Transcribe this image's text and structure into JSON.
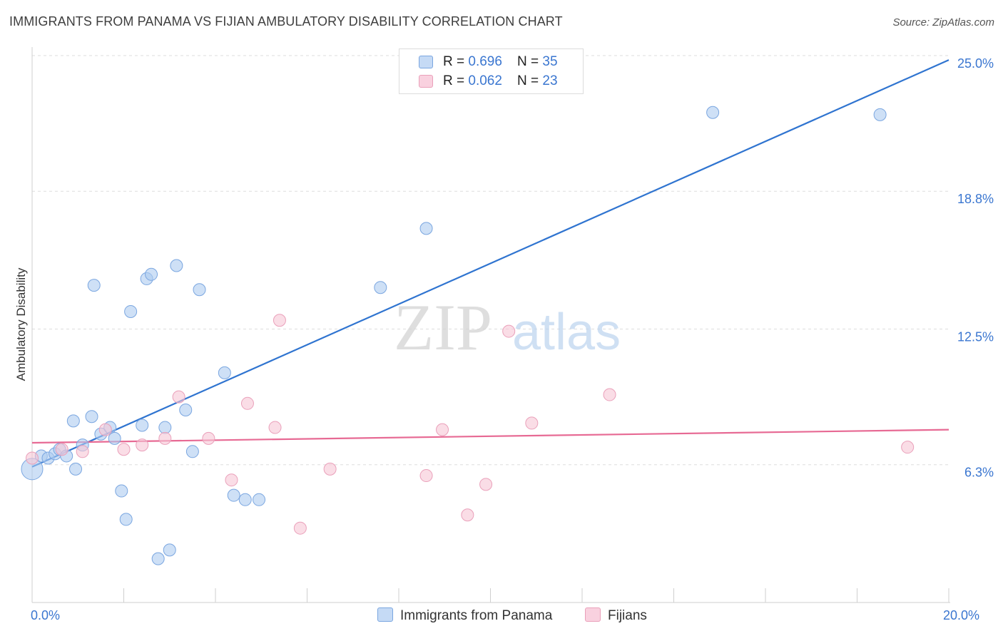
{
  "header": {
    "title": "IMMIGRANTS FROM PANAMA VS FIJIAN AMBULATORY DISABILITY CORRELATION CHART",
    "source": "Source: ZipAtlas.com"
  },
  "watermark": {
    "zip": "ZIP",
    "atlas": "atlas"
  },
  "legend": {
    "rows": [
      {
        "r_label": "R = ",
        "r_value": "0.696",
        "n_label": "N = ",
        "n_value": "35"
      },
      {
        "r_label": "R = ",
        "r_value": "0.062",
        "n_label": "N = ",
        "n_value": "23"
      }
    ]
  },
  "chart_data": {
    "type": "scatter",
    "title": "IMMIGRANTS FROM PANAMA VS FIJIAN AMBULATORY DISABILITY CORRELATION CHART",
    "xlabel": "",
    "ylabel": "Ambulatory Disability",
    "xlim": [
      0,
      20
    ],
    "ylim": [
      0,
      25
    ],
    "x_tick_labels": [
      "0.0%",
      "20.0%"
    ],
    "y_ticks": [
      6.3,
      12.5,
      18.8,
      25.0
    ],
    "y_tick_labels": [
      "6.3%",
      "12.5%",
      "18.8%",
      "25.0%"
    ],
    "colors": {
      "panama_fill": "#aecbf0",
      "panama_stroke": "#7aa6e0",
      "panama_line": "#2f74d0",
      "fijian_fill": "#f7c6d6",
      "fijian_stroke": "#eaa0ba",
      "fijian_line": "#e76a94",
      "accent_text": "#3a76d0"
    },
    "series": [
      {
        "name": "Immigrants from Panama",
        "points": [
          [
            0.0,
            6.1
          ],
          [
            0.2,
            6.7
          ],
          [
            0.35,
            6.6
          ],
          [
            0.5,
            6.8
          ],
          [
            0.6,
            7.0
          ],
          [
            0.75,
            6.7
          ],
          [
            0.95,
            6.1
          ],
          [
            0.9,
            8.3
          ],
          [
            1.1,
            7.2
          ],
          [
            1.3,
            8.5
          ],
          [
            1.5,
            7.7
          ],
          [
            1.7,
            8.0
          ],
          [
            1.8,
            7.5
          ],
          [
            1.35,
            14.5
          ],
          [
            2.15,
            13.3
          ],
          [
            1.95,
            5.1
          ],
          [
            2.05,
            3.8
          ],
          [
            2.4,
            8.1
          ],
          [
            2.5,
            14.8
          ],
          [
            2.6,
            15.0
          ],
          [
            2.9,
            8.0
          ],
          [
            2.75,
            2.0
          ],
          [
            3.0,
            2.4
          ],
          [
            3.15,
            15.4
          ],
          [
            3.35,
            8.8
          ],
          [
            3.5,
            6.9
          ],
          [
            3.65,
            14.3
          ],
          [
            4.2,
            10.5
          ],
          [
            4.4,
            4.9
          ],
          [
            4.65,
            4.7
          ],
          [
            4.95,
            4.7
          ],
          [
            7.6,
            14.4
          ],
          [
            8.6,
            17.1
          ],
          [
            14.85,
            22.4
          ],
          [
            18.5,
            22.3
          ]
        ],
        "trend": [
          [
            0.0,
            6.2
          ],
          [
            20.0,
            24.8
          ]
        ]
      },
      {
        "name": "Fijians",
        "points": [
          [
            0.0,
            6.6
          ],
          [
            0.65,
            7.0
          ],
          [
            1.1,
            6.9
          ],
          [
            1.6,
            7.9
          ],
          [
            2.0,
            7.0
          ],
          [
            2.4,
            7.2
          ],
          [
            2.9,
            7.5
          ],
          [
            3.2,
            9.4
          ],
          [
            3.85,
            7.5
          ],
          [
            4.35,
            5.6
          ],
          [
            4.7,
            9.1
          ],
          [
            5.3,
            8.0
          ],
          [
            5.4,
            12.9
          ],
          [
            5.85,
            3.4
          ],
          [
            6.5,
            6.1
          ],
          [
            8.6,
            5.8
          ],
          [
            8.95,
            7.9
          ],
          [
            9.5,
            4.0
          ],
          [
            9.9,
            5.4
          ],
          [
            10.4,
            12.4
          ],
          [
            10.9,
            8.2
          ],
          [
            12.6,
            9.5
          ],
          [
            19.1,
            7.1
          ]
        ],
        "trend": [
          [
            0.0,
            7.3
          ],
          [
            20.0,
            7.9
          ]
        ]
      }
    ]
  },
  "bottom_legend": {
    "items": [
      {
        "label": "Immigrants from Panama"
      },
      {
        "label": "Fijians"
      }
    ]
  }
}
